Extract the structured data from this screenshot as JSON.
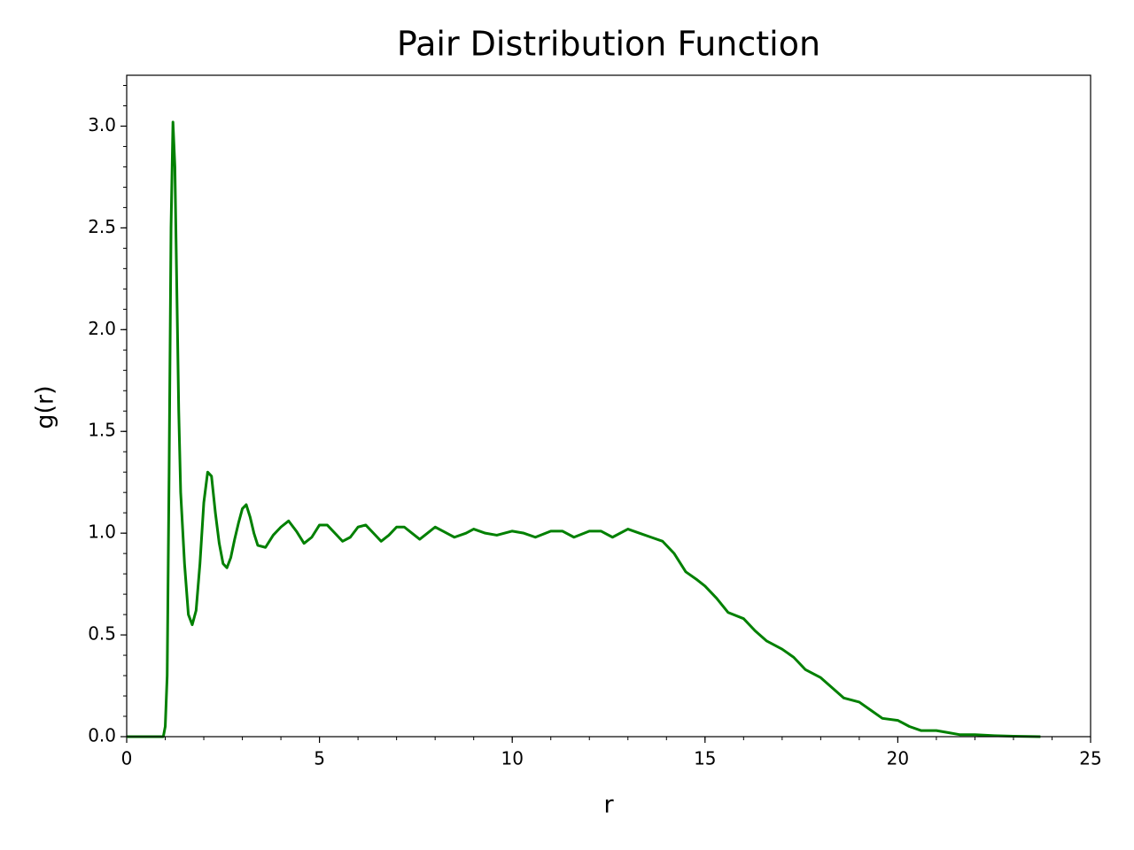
{
  "chart_data": {
    "type": "line",
    "title": "Pair Distribution Function",
    "x_label": "r",
    "y_label": "g(r)",
    "xlim": [
      0,
      25
    ],
    "ylim": [
      0,
      3.25
    ],
    "xticks": [
      0,
      5,
      10,
      15,
      20,
      25
    ],
    "yticks": [
      {
        "value": 0,
        "label": "0.0"
      },
      {
        "value": 0.5,
        "label": "0.5"
      },
      {
        "value": 1,
        "label": "1.0"
      },
      {
        "value": 1.5,
        "label": "1.5"
      },
      {
        "value": 2,
        "label": "2.0"
      },
      {
        "value": 2.5,
        "label": "2.5"
      },
      {
        "value": 3,
        "label": "3.0"
      }
    ],
    "xminorticks": [
      0,
      1,
      2,
      3,
      4,
      5,
      6,
      7,
      8,
      9,
      10,
      11,
      12,
      13,
      14,
      15,
      16,
      17,
      18,
      19,
      20,
      21,
      22,
      23,
      24,
      25
    ],
    "yminorticks": [
      0,
      0.1,
      0.2,
      0.3,
      0.4,
      0.5,
      0.6,
      0.7,
      0.8,
      0.9,
      1,
      1.1,
      1.2,
      1.3,
      1.4,
      1.5,
      1.6,
      1.7,
      1.8,
      1.9,
      2,
      2.1,
      2.2,
      2.3,
      2.4,
      2.5,
      2.6,
      2.7,
      2.8,
      2.9,
      3,
      3.1,
      3.2
    ],
    "grid": false,
    "series": [
      {
        "name": "g(r)",
        "color": "#008000",
        "x": [
          0,
          0.5,
          0.95,
          1.0,
          1.05,
          1.1,
          1.15,
          1.2,
          1.25,
          1.3,
          1.35,
          1.4,
          1.5,
          1.6,
          1.7,
          1.8,
          1.9,
          2.0,
          2.1,
          2.2,
          2.3,
          2.4,
          2.5,
          2.6,
          2.7,
          2.8,
          2.9,
          3.0,
          3.1,
          3.2,
          3.3,
          3.4,
          3.6,
          3.8,
          4.0,
          4.2,
          4.4,
          4.6,
          4.8,
          5.0,
          5.2,
          5.4,
          5.6,
          5.8,
          6.0,
          6.2,
          6.4,
          6.6,
          6.8,
          7.0,
          7.2,
          7.4,
          7.6,
          7.8,
          8.0,
          8.2,
          8.5,
          8.8,
          9.0,
          9.3,
          9.6,
          10.0,
          10.3,
          10.6,
          11.0,
          11.3,
          11.6,
          12.0,
          12.3,
          12.6,
          13.0,
          13.3,
          13.6,
          13.9,
          14.2,
          14.5,
          14.8,
          15.0,
          15.3,
          15.6,
          16.0,
          16.3,
          16.6,
          17.0,
          17.3,
          17.6,
          18.0,
          18.3,
          18.6,
          19.0,
          19.3,
          19.6,
          20.0,
          20.3,
          20.6,
          21.0,
          21.3,
          21.6,
          22.0,
          22.5,
          23.0,
          23.7
        ],
        "values": [
          0,
          0,
          0,
          0.05,
          0.3,
          1.3,
          2.5,
          3.02,
          2.8,
          2.2,
          1.6,
          1.2,
          0.85,
          0.6,
          0.55,
          0.62,
          0.85,
          1.15,
          1.3,
          1.28,
          1.1,
          0.95,
          0.85,
          0.83,
          0.88,
          0.97,
          1.05,
          1.12,
          1.14,
          1.08,
          1.0,
          0.94,
          0.93,
          0.99,
          1.03,
          1.06,
          1.01,
          0.95,
          0.98,
          1.04,
          1.04,
          1.0,
          0.96,
          0.98,
          1.03,
          1.04,
          1.0,
          0.96,
          0.99,
          1.03,
          1.03,
          1.0,
          0.97,
          1.0,
          1.03,
          1.01,
          0.98,
          1.0,
          1.02,
          1.0,
          0.99,
          1.01,
          1.0,
          0.98,
          1.01,
          1.01,
          0.98,
          1.01,
          1.01,
          0.98,
          1.02,
          1.0,
          0.98,
          0.96,
          0.9,
          0.81,
          0.77,
          0.74,
          0.68,
          0.61,
          0.58,
          0.52,
          0.47,
          0.43,
          0.39,
          0.33,
          0.29,
          0.24,
          0.19,
          0.17,
          0.13,
          0.09,
          0.08,
          0.05,
          0.03,
          0.03,
          0.02,
          0.01,
          0.01,
          0.005,
          0.002,
          0
        ]
      }
    ]
  }
}
